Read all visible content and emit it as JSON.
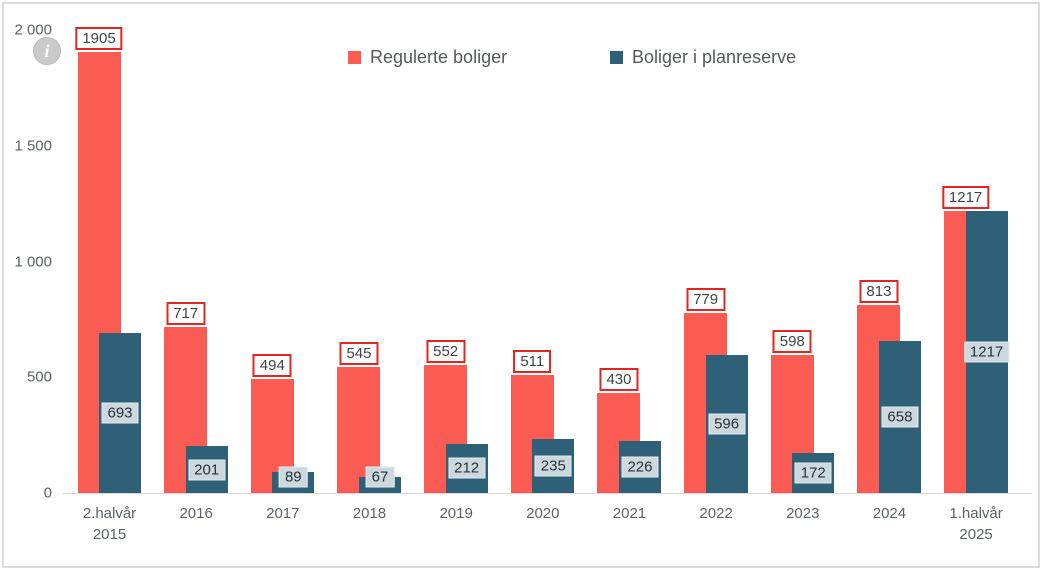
{
  "info_icon": {
    "glyph": "i"
  },
  "colors": {
    "series_red": "#fa5c54",
    "series_teal": "#2e6077",
    "red_label_border": "#e0261f",
    "teal_label_bg": "#ccd7de",
    "axis_text": "#5b6167",
    "legend_text": "#55595e",
    "axis_line": "#d9d9d9",
    "frame_border": "#dcdcdc"
  },
  "chart_data": {
    "type": "bar",
    "title": "",
    "xlabel": "",
    "ylabel": "",
    "grid": false,
    "legend_position": "top",
    "ylim": [
      0,
      2000
    ],
    "yticks": [
      {
        "value": 0,
        "label": "0"
      },
      {
        "value": 500,
        "label": "500"
      },
      {
        "value": 1000,
        "label": "1 000"
      },
      {
        "value": 1500,
        "label": "1 500"
      },
      {
        "value": 2000,
        "label": "2 000"
      }
    ],
    "categories": [
      "2.halvår\n2015",
      "2016",
      "2017",
      "2018",
      "2019",
      "2020",
      "2021",
      "2022",
      "2023",
      "2024",
      "1.halvår\n2025"
    ],
    "series": [
      {
        "name": "Regulerte boliger",
        "slug": "regulerte",
        "color": "#fa5c54",
        "label_style": "red",
        "values": [
          1905,
          717,
          494,
          545,
          552,
          511,
          430,
          779,
          598,
          813,
          1217
        ]
      },
      {
        "name": "Boliger i planreserve",
        "slug": "planreserve",
        "color": "#2e6077",
        "label_style": "teal",
        "values": [
          693,
          201,
          89,
          67,
          212,
          235,
          226,
          596,
          172,
          658,
          1217
        ]
      }
    ]
  }
}
